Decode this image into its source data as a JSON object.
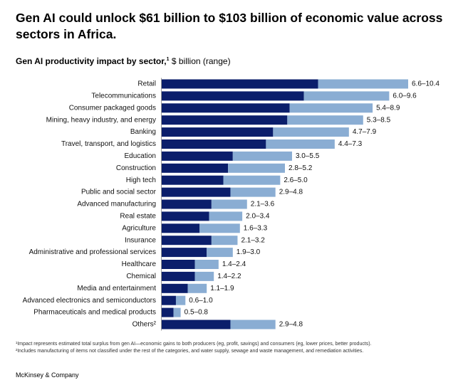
{
  "chart_data": {
    "type": "range-bar",
    "title": "Gen AI could unlock $61 billion to $103 billion of economic value across sectors in Africa.",
    "subtitle": "Gen AI productivity impact by sector,",
    "subtitle_marker": "1",
    "subtitle_unit": "$ billion (range)",
    "categories": [
      "Retail",
      "Telecommunications",
      "Consumer packaged goods",
      "Mining, heavy industry, and energy",
      "Banking",
      "Travel, transport, and logistics",
      "Education",
      "Construction",
      "High tech",
      "Public and social sector",
      "Advanced manufacturing",
      "Real estate",
      "Agriculture",
      "Insurance",
      "Administrative and professional services",
      "Healthcare",
      "Chemical",
      "Media and entertainment",
      "Advanced electronics and semiconductors",
      "Pharmaceuticals and medical products",
      "Others²"
    ],
    "low": [
      6.6,
      6.0,
      5.4,
      5.3,
      4.7,
      4.4,
      3.0,
      2.8,
      2.6,
      2.9,
      2.1,
      2.0,
      1.6,
      2.1,
      1.9,
      1.4,
      1.4,
      1.1,
      0.6,
      0.5,
      2.9
    ],
    "high": [
      10.4,
      9.6,
      8.9,
      8.5,
      7.9,
      7.3,
      5.5,
      5.2,
      5.0,
      4.8,
      3.6,
      3.4,
      3.3,
      3.2,
      3.0,
      2.4,
      2.2,
      1.9,
      1.0,
      0.8,
      4.8
    ],
    "value_labels": [
      "6.6–10.4",
      "6.0–9.6",
      "5.4–8.9",
      "5.3–8.5",
      "4.7–7.9",
      "4.4–7.3",
      "3.0–5.5",
      "2.8–5.2",
      "2.6–5.0",
      "2.9–4.8",
      "2.1–3.6",
      "2.0–3.4",
      "1.6–3.3",
      "2.1–3.2",
      "1.9–3.0",
      "1.4–2.4",
      "1.4–2.2",
      "1.1–1.9",
      "0.6–1.0",
      "0.5–0.8",
      "2.9–4.8"
    ],
    "low_color": "#0b1e6b",
    "high_color": "#8aadd3",
    "footnotes": [
      "¹Impact represents estimated total surplus from gen AI—economic gains to both producers (eg, profit, savings) and consumers (eg, lower prices, better products).",
      "²Includes manufacturing of items not classified under the rest of the categories, and water supply, sewage and waste management, and remediation activities."
    ],
    "source": "McKinsey & Company"
  }
}
